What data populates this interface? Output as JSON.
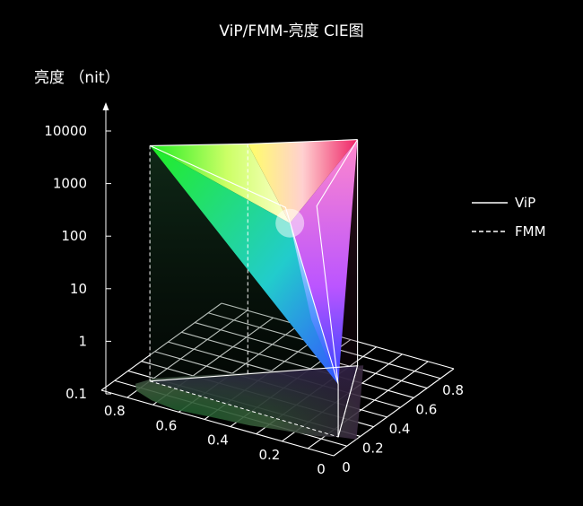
{
  "chart_data": {
    "type": "surface-3d",
    "title": "ViP/FMM-亮度 CIE图",
    "zlabel": "亮度 （nit）",
    "z_scale": "log",
    "z_ticks": [
      "0.1",
      "1",
      "10",
      "100",
      "1000",
      "10000"
    ],
    "x_ticks": [
      "0",
      "0.2",
      "0.4",
      "0.6",
      "0.8"
    ],
    "y_ticks": [
      "0",
      "0.2",
      "0.4",
      "0.6",
      "0.8"
    ],
    "grid": true,
    "legend_position": "right",
    "series": [
      {
        "name": "ViP",
        "line_style": "solid"
      },
      {
        "name": "FMM",
        "line_style": "dashed"
      }
    ],
    "gamut_vertices": [
      {
        "name": "green",
        "x": 0.17,
        "y": 0.8,
        "top_z": 3000
      },
      {
        "name": "yellow",
        "x": 0.42,
        "y": 0.55,
        "top_z": 2500
      },
      {
        "name": "red",
        "x": 0.72,
        "y": 0.28,
        "top_z": 2000
      },
      {
        "name": "blue",
        "x": 0.15,
        "y": 0.06,
        "top_z": 1
      }
    ],
    "colors": {
      "background": "#000000",
      "axis": "#ffffff",
      "green": "#22ee22",
      "yellow": "#ffff66",
      "red": "#ee2266",
      "blue": "#3344ff",
      "white": "#ffffff"
    }
  }
}
